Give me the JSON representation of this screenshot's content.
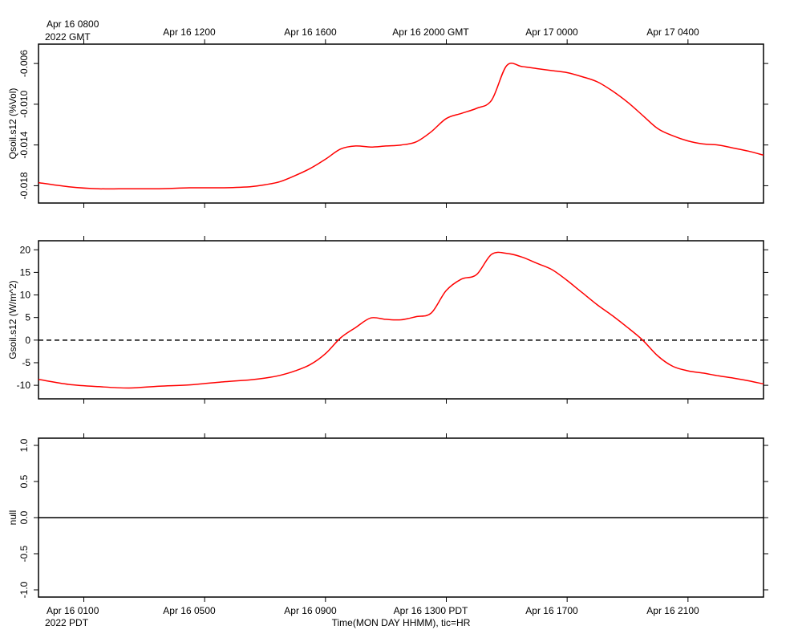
{
  "top_labels": {
    "first_line1": "Apr 16 0800",
    "first_line2": "2022 GMT",
    "ticks": [
      "Apr 16 1200",
      "Apr 16 1600",
      "Apr 16 2000 GMT",
      "Apr 17 0000",
      "Apr 17 0400"
    ]
  },
  "bottom_labels": {
    "first_line1": "Apr 16 0100",
    "first_line2": "2022 PDT",
    "ticks": [
      "Apr 16 0500",
      "Apr 16 0900",
      "Apr 16 1300 PDT",
      "Apr 16 1700",
      "Apr 16 2100"
    ],
    "xlabel": "Time(MON DAY HHMM), tic=HR"
  },
  "chart_data": [
    {
      "type": "line",
      "ylabel": "Qsoil.s12 (%Vol)",
      "ylim": [
        -0.0197,
        -0.0041
      ],
      "yticks": [
        -0.018,
        -0.014,
        -0.01,
        -0.006
      ],
      "ytick_labels": [
        "-0.018",
        "-0.014",
        "-0.010",
        "-0.006"
      ],
      "xlim_hours": [
        0,
        24
      ],
      "color": "#ff0000",
      "x": [
        0,
        1,
        2,
        3,
        4,
        5,
        6,
        7,
        7.5,
        8,
        8.5,
        9,
        9.5,
        10,
        10.5,
        11,
        11.5,
        12,
        12.5,
        13,
        13.5,
        14,
        14.5,
        15,
        15.5,
        16,
        16.5,
        17,
        17.5,
        18,
        18.5,
        19,
        19.5,
        20,
        20.5,
        21,
        21.5,
        22,
        22.5,
        23,
        23.5,
        24
      ],
      "y": [
        -0.0177,
        -0.0181,
        -0.0183,
        -0.0183,
        -0.0183,
        -0.0182,
        -0.0182,
        -0.0181,
        -0.0179,
        -0.0176,
        -0.017,
        -0.0163,
        -0.0154,
        -0.0144,
        -0.0141,
        -0.0142,
        -0.0141,
        -0.014,
        -0.0137,
        -0.0127,
        -0.0114,
        -0.0109,
        -0.0104,
        -0.0096,
        -0.0062,
        -0.0063,
        -0.0065,
        -0.0067,
        -0.0069,
        -0.0073,
        -0.0078,
        -0.0087,
        -0.0098,
        -0.0111,
        -0.0124,
        -0.0131,
        -0.0136,
        -0.0139,
        -0.014,
        -0.0143,
        -0.0146,
        -0.015
      ]
    },
    {
      "type": "line",
      "ylabel": "Gsoil.s12 (W/m^2)",
      "ylim": [
        -13,
        22
      ],
      "yticks": [
        -10,
        -5,
        0,
        5,
        10,
        15,
        20
      ],
      "ytick_labels": [
        "-10",
        "-5",
        "0",
        "5",
        "10",
        "15",
        "20"
      ],
      "reference_line": 0,
      "xlim_hours": [
        0,
        24
      ],
      "color": "#ff0000",
      "x": [
        0,
        1,
        2,
        3,
        4,
        5,
        6,
        7,
        7.5,
        8,
        8.5,
        9,
        9.5,
        10,
        10.5,
        11,
        11.5,
        12,
        12.5,
        13,
        13.5,
        14,
        14.5,
        15,
        15.5,
        16,
        16.5,
        17,
        17.5,
        18,
        18.5,
        19,
        19.5,
        20,
        20.5,
        21,
        21.5,
        22,
        22.5,
        23,
        23.5,
        24
      ],
      "y": [
        -8.7,
        -9.8,
        -10.3,
        -10.6,
        -10.2,
        -9.9,
        -9.3,
        -8.8,
        -8.4,
        -7.8,
        -6.8,
        -5.4,
        -3.0,
        0.5,
        2.8,
        4.9,
        4.6,
        4.5,
        5.2,
        6.0,
        11.0,
        13.5,
        14.5,
        19.0,
        19.2,
        18.4,
        17.0,
        15.6,
        13.2,
        10.5,
        7.8,
        5.4,
        2.8,
        0.0,
        -3.5,
        -5.8,
        -6.8,
        -7.3,
        -7.9,
        -8.4,
        -9.0,
        -9.7
      ]
    },
    {
      "type": "line",
      "ylabel": "null",
      "ylim": [
        -1.1,
        1.1
      ],
      "yticks": [
        -1.0,
        -0.5,
        0.0,
        0.5,
        1.0
      ],
      "ytick_labels": [
        "-1.0",
        "-0.5",
        "0.0",
        "0.5",
        "1.0"
      ],
      "xlim_hours": [
        0,
        24
      ],
      "color": "#000000",
      "x": [
        0,
        24
      ],
      "y": [
        0,
        0
      ]
    }
  ]
}
